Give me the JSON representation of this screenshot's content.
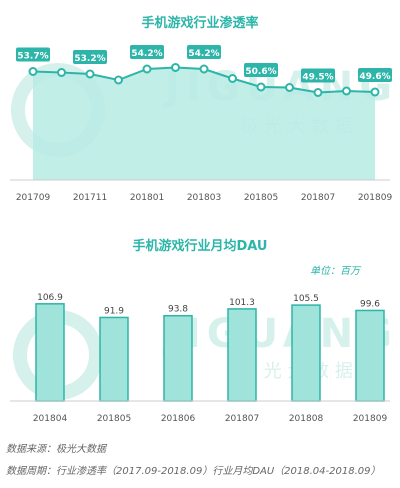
{
  "watermark": {
    "brand": "JIGUANG",
    "cn": "极 光 大 数 据"
  },
  "unit_label": "单位：百万",
  "footer": {
    "source": "数据来源：极光大数据",
    "period": "数据周期：行业渗透率（2017.09-2018.09）行业月均DAU（2018.04-2018.09）"
  },
  "colors": {
    "accent": "#2cb5a8",
    "fill": "#b7ebe4",
    "bar_fill": "#9fe3da",
    "watermark": "#cfeee9"
  },
  "chart_data": [
    {
      "type": "area",
      "title": "手机游戏行业渗透率",
      "x": [
        "201709",
        "201710",
        "201711",
        "201712",
        "201801",
        "201802",
        "201803",
        "201804",
        "201805",
        "201806",
        "201807",
        "201808",
        "201809"
      ],
      "x_tick_labels": [
        "201709",
        "201711",
        "201801",
        "201803",
        "201805",
        "201807",
        "201809"
      ],
      "values": [
        53.7,
        53.5,
        53.2,
        52.0,
        54.2,
        54.5,
        54.2,
        52.3,
        50.6,
        50.5,
        49.5,
        49.8,
        49.6
      ],
      "labels": [
        {
          "index": 0,
          "text": "53.7%"
        },
        {
          "index": 2,
          "text": "53.2%"
        },
        {
          "index": 4,
          "text": "54.2%"
        },
        {
          "index": 6,
          "text": "54.2%"
        },
        {
          "index": 8,
          "text": "50.6%"
        },
        {
          "index": 10,
          "text": "49.5%"
        },
        {
          "index": 12,
          "text": "49.6%"
        }
      ],
      "ylabel": "",
      "xlabel": "",
      "grid": false
    },
    {
      "type": "bar",
      "title": "手机游戏行业月均DAU",
      "categories": [
        "201804",
        "201805",
        "201806",
        "201807",
        "201808",
        "201809"
      ],
      "values": [
        106.9,
        91.9,
        93.8,
        101.3,
        105.5,
        99.6
      ],
      "ylabel": "",
      "xlabel": "",
      "grid": false
    }
  ]
}
